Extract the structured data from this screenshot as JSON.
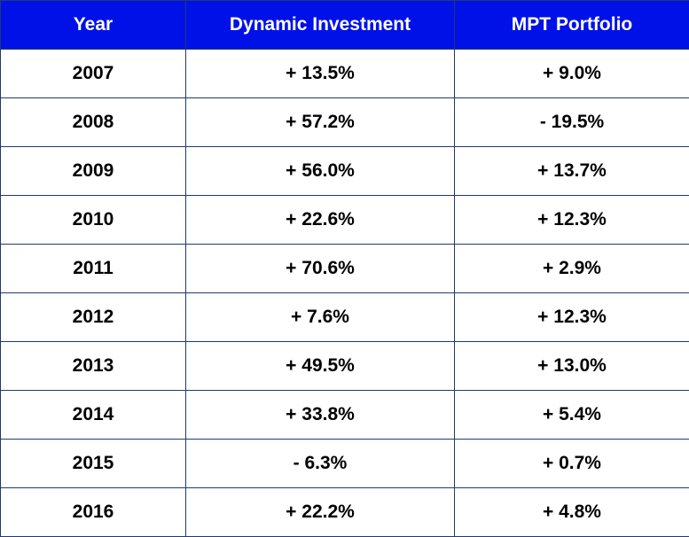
{
  "chart_data": {
    "type": "table",
    "columns": [
      "Year",
      "Dynamic Investment",
      "MPT Portfolio"
    ],
    "rows": [
      {
        "year": "2007",
        "dynamic": "+ 13.5%",
        "mpt": "+ 9.0%"
      },
      {
        "year": "2008",
        "dynamic": "+ 57.2%",
        "mpt": "- 19.5%"
      },
      {
        "year": "2009",
        "dynamic": "+ 56.0%",
        "mpt": "+ 13.7%"
      },
      {
        "year": "2010",
        "dynamic": "+ 22.6%",
        "mpt": "+ 12.3%"
      },
      {
        "year": "2011",
        "dynamic": "+ 70.6%",
        "mpt": "+ 2.9%"
      },
      {
        "year": "2012",
        "dynamic": "+ 7.6%",
        "mpt": "+ 12.3%"
      },
      {
        "year": "2013",
        "dynamic": "+ 49.5%",
        "mpt": "+ 13.0%"
      },
      {
        "year": "2014",
        "dynamic": "+ 33.8%",
        "mpt": "+ 5.4%"
      },
      {
        "year": "2015",
        "dynamic": "- 6.3%",
        "mpt": "+ 0.7%"
      },
      {
        "year": "2016",
        "dynamic": "+ 22.2%",
        "mpt": "+ 4.8%"
      }
    ],
    "colors": {
      "header_background": "#0011e8",
      "header_text": "#ffffff",
      "border": "#1f3a6b",
      "cell_text": "#000000"
    }
  }
}
